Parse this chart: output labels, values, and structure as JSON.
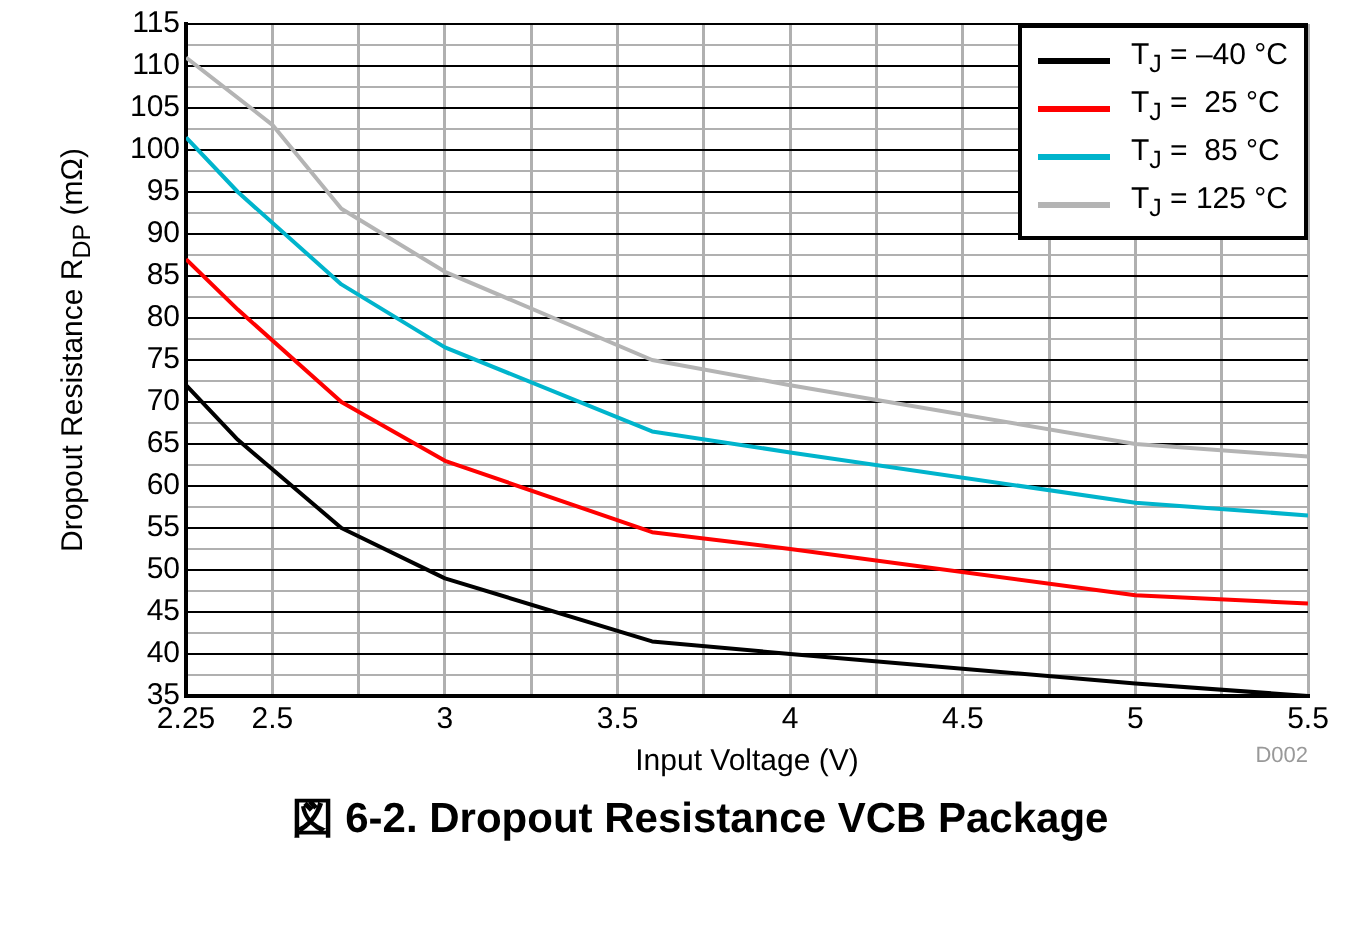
{
  "chart_data": {
    "type": "line",
    "title": "図 6-2. Dropout Resistance VCB Package",
    "xlabel": "Input Voltage (V)",
    "ylabel": "Dropout Resistance R$_{DP}$ (mΩ)",
    "annotations": [
      "D002"
    ],
    "xlim": [
      2.25,
      5.5
    ],
    "xticks": [
      2.25,
      2.5,
      {
        "value": 2.75,
        "label": null
      },
      3,
      {
        "value": 3.25,
        "label": null
      },
      3.5,
      {
        "value": 3.75,
        "label": null
      },
      4,
      {
        "value": 4.25,
        "label": null
      },
      4.5,
      {
        "value": 4.75,
        "label": null
      },
      5,
      {
        "value": 5.25,
        "label": null
      },
      5.5
    ],
    "ylim": [
      35,
      115
    ],
    "yticks": [
      35,
      {
        "value": 37.5,
        "label": null
      },
      40,
      {
        "value": 42.5,
        "label": null
      },
      45,
      {
        "value": 47.5,
        "label": null
      },
      50,
      {
        "value": 52.5,
        "label": null
      },
      55,
      {
        "value": 57.5,
        "label": null
      },
      60,
      {
        "value": 62.5,
        "label": null
      },
      65,
      {
        "value": 67.5,
        "label": null
      },
      70,
      {
        "value": 72.5,
        "label": null
      },
      75,
      {
        "value": 77.5,
        "label": null
      },
      80,
      {
        "value": 82.5,
        "label": null
      },
      85,
      {
        "value": 87.5,
        "label": null
      },
      90,
      {
        "value": 92.5,
        "label": null
      },
      95,
      {
        "value": 97.5,
        "label": null
      },
      100,
      {
        "value": 102.5,
        "label": null
      },
      105,
      {
        "value": 107.5,
        "label": null
      },
      110,
      {
        "value": 112.5,
        "label": null
      },
      115
    ],
    "grid": true,
    "legend": "top right",
    "marker": "none",
    "line_style": "solid",
    "series": [
      {
        "name": "T$_{J}$ = –40 °C",
        "color": "#000000",
        "x": [
          2.25,
          2.4,
          2.7,
          3,
          3.6,
          4,
          5,
          5.5
        ],
        "values": [
          72,
          65.5,
          55,
          49,
          41.5,
          40,
          36.5,
          35
        ]
      },
      {
        "name": "T$_{J}$ =  25 °C",
        "color": "#ff0000",
        "x": [
          2.25,
          2.4,
          2.7,
          3,
          3.6,
          4,
          5,
          5.5
        ],
        "values": [
          87,
          81,
          70,
          63,
          54.5,
          52.5,
          47,
          46
        ]
      },
      {
        "name": "T$_{J}$ =  85 °C",
        "color": "#00b4cc",
        "x": [
          2.25,
          2.4,
          2.7,
          3,
          3.6,
          4,
          5,
          5.5
        ],
        "values": [
          101.5,
          95,
          84,
          76.5,
          66.5,
          64,
          58,
          56.5
        ]
      },
      {
        "name": "T$_{J}$ = 125 °C",
        "color": "#b4b4b4",
        "x": [
          2.25,
          2.5,
          2.7,
          3,
          3.6,
          4,
          5,
          5.5
        ],
        "values": [
          111,
          103,
          93,
          85.5,
          75,
          72,
          65,
          63.5
        ]
      }
    ]
  }
}
